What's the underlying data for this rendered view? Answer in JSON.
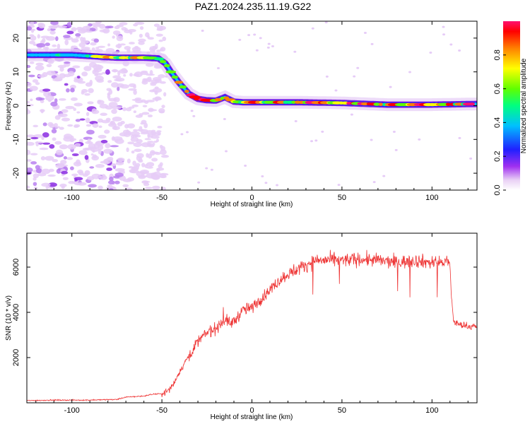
{
  "figure": {
    "title": "PAZ1.2024.235.11.19.G22"
  },
  "chart_data": [
    {
      "type": "heatmap",
      "xlabel": "Height of straight line (km)",
      "ylabel": "Frequency (Hz)",
      "xlim": [
        -125,
        125
      ],
      "ylim": [
        -25,
        25
      ],
      "xticks": [
        -100,
        -50,
        0,
        50,
        100
      ],
      "yticks": [
        -20,
        -10,
        0,
        10,
        20
      ],
      "colorbar": {
        "label": "Normalized spectral amplitude",
        "range": [
          0,
          1
        ],
        "ticks": [
          0.0,
          0.2,
          0.4,
          0.6,
          0.8
        ],
        "tick_labels": [
          "0.0",
          "0.2",
          "0.4",
          "0.6",
          "0.8"
        ],
        "colormap": [
          "#e9d0f5",
          "#a030f0",
          "#2020ff",
          "#00c0ff",
          "#00ff80",
          "#60ff00",
          "#ffff00",
          "#ff8000",
          "#ff0000",
          "#ff1070"
        ]
      },
      "ridge": {
        "height_km": [
          -125,
          -100,
          -75,
          -60,
          -52,
          -48,
          -45,
          -40,
          -35,
          -30,
          -25,
          -20,
          -15,
          -10,
          -5,
          0,
          25,
          50,
          75,
          100,
          125
        ],
        "frequency_hz": [
          15,
          15,
          14.2,
          14.2,
          14,
          12.5,
          10,
          6.5,
          3.5,
          2,
          1.6,
          1.5,
          2.5,
          1.2,
          1,
          1,
          1,
          0.8,
          0.3,
          0.3,
          0.5
        ]
      },
      "noise_region_km": [
        -125,
        -50
      ]
    },
    {
      "type": "line",
      "xlabel": "Height of straight line (km)",
      "ylabel": "SNR (10 * v/v)",
      "xlim": [
        -125,
        125
      ],
      "ylim": [
        0,
        7500
      ],
      "xticks": [
        -100,
        -50,
        0,
        50,
        100
      ],
      "yticks": [
        2000,
        4000,
        6000
      ],
      "color": "#ee3333",
      "series": [
        {
          "x": [
            -125,
            -110,
            -90,
            -75,
            -70,
            -60,
            -55,
            -50,
            -47,
            -45,
            -43,
            -40,
            -35,
            -30,
            -25,
            -20,
            -15,
            -12,
            -10,
            -8,
            -5,
            0,
            5,
            10,
            15,
            20,
            25,
            30,
            35,
            40,
            50,
            60,
            70,
            80,
            90,
            100,
            105,
            108,
            110,
            111,
            112,
            115,
            120,
            125
          ],
          "y": [
            100,
            120,
            120,
            150,
            250,
            300,
            380,
            400,
            500,
            700,
            900,
            1400,
            2100,
            2700,
            3100,
            3300,
            3700,
            3500,
            3600,
            3800,
            4100,
            4200,
            4600,
            5000,
            5400,
            5700,
            5900,
            6100,
            6300,
            6300,
            6300,
            6350,
            6300,
            6200,
            6300,
            6200,
            6200,
            6250,
            6100,
            4500,
            3600,
            3450,
            3400,
            3350
          ]
        }
      ]
    }
  ]
}
